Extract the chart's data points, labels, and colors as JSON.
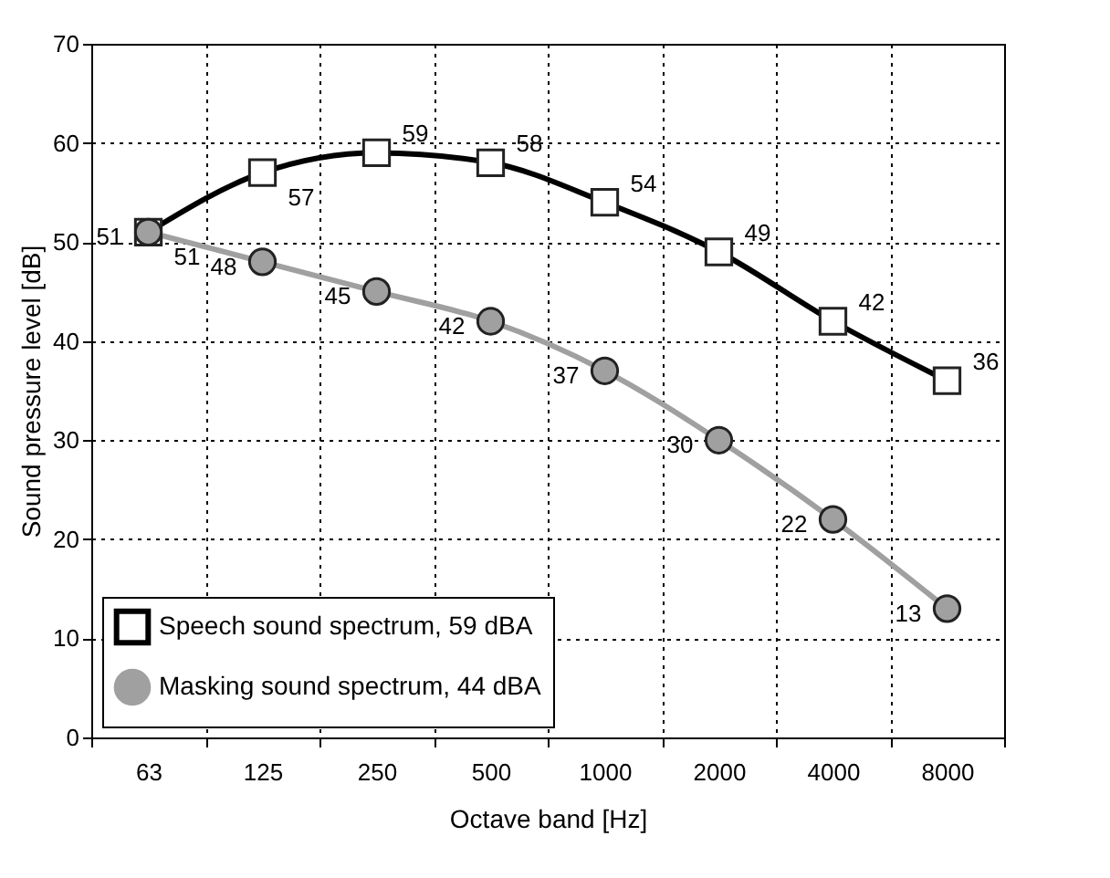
{
  "chart_data": {
    "type": "line",
    "xlabel": "Octave band [Hz]",
    "ylabel": "Sound pressure level [dB]",
    "categories": [
      "63",
      "125",
      "250",
      "500",
      "1000",
      "2000",
      "4000",
      "8000"
    ],
    "series": [
      {
        "name": "Speech sound spectrum, 59 dBA",
        "color": "#000000",
        "marker": "square",
        "values": [
          51,
          57,
          59,
          58,
          54,
          49,
          42,
          36
        ]
      },
      {
        "name": "Masking sound spectrum, 44 dBA",
        "color": "#a0a0a0",
        "marker": "circle",
        "values": [
          51,
          48,
          45,
          42,
          37,
          30,
          22,
          13
        ]
      }
    ],
    "ylim": [
      0,
      70
    ],
    "yticks": [
      0,
      10,
      20,
      30,
      40,
      50,
      60,
      70
    ],
    "grid": true,
    "legend": "bottom left",
    "data_labels": true,
    "line_style": "solid"
  }
}
